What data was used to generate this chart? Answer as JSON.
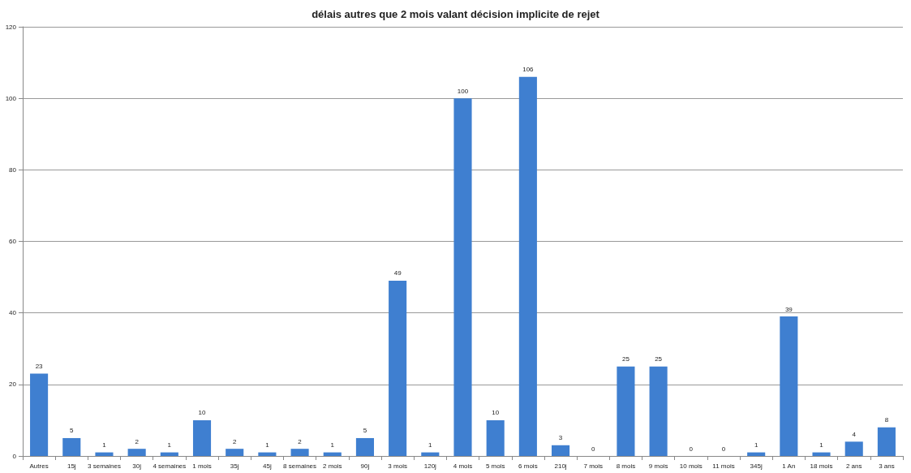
{
  "chart_data": {
    "type": "bar",
    "title": "délais autres que 2 mois valant décision implicite de rejet",
    "categories": [
      "Autres",
      "15j",
      "3 semaines",
      "30j",
      "4 semaines",
      "1 mois",
      "35j",
      "45j",
      "8 semaines",
      "2 mois",
      "90j",
      "3 mois",
      "120j",
      "4 mois",
      "5 mois",
      "6 mois",
      "210j",
      "7 mois",
      "8 mois",
      "9 mois",
      "10 mois",
      "11 mois",
      "345j",
      "1 An",
      "18 mois",
      "2 ans",
      "3 ans"
    ],
    "values": [
      23,
      5,
      1,
      2,
      1,
      10,
      2,
      1,
      2,
      1,
      5,
      49,
      1,
      100,
      10,
      106,
      3,
      0,
      25,
      25,
      0,
      0,
      1,
      39,
      1,
      4,
      8
    ],
    "color": "#3f7fd0",
    "ylim": [
      0,
      120
    ],
    "yticks": [
      0,
      20,
      40,
      60,
      80,
      100,
      120
    ],
    "grid": "y",
    "data_labels": true
  }
}
